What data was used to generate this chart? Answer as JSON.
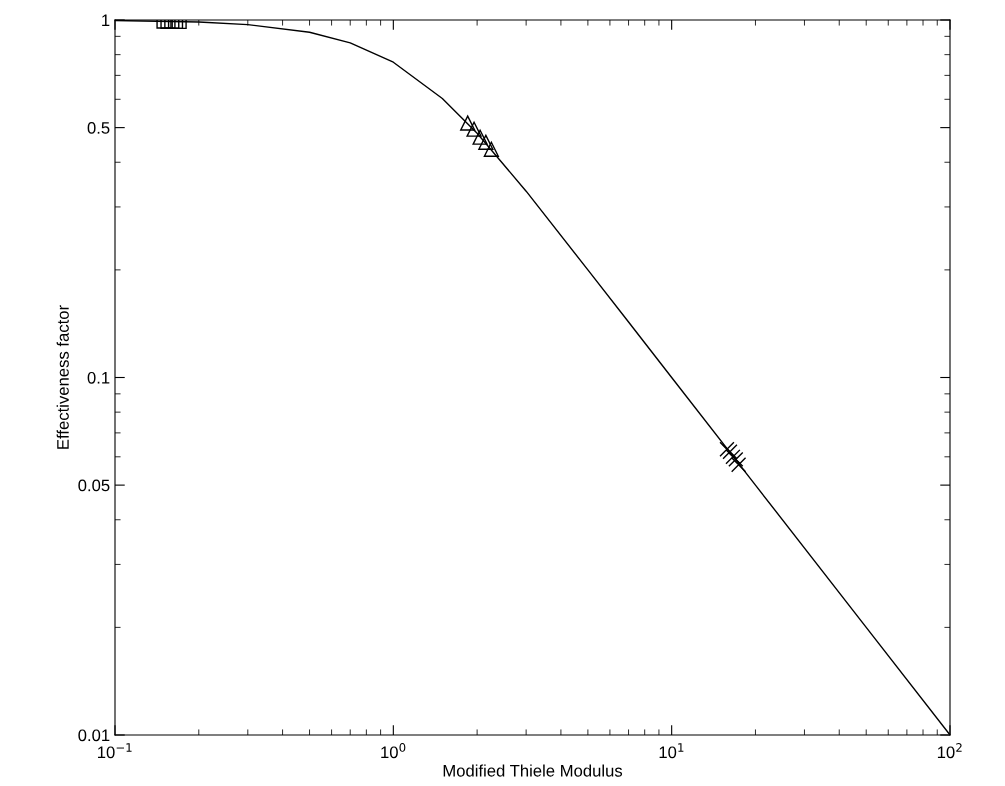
{
  "chart_data": {
    "type": "line",
    "xlabel": "Modified Thiele Modulus",
    "ylabel": "Effectiveness factor",
    "log": "xy",
    "grid": false,
    "xlim": [
      0.1,
      100
    ],
    "ylim": [
      0.01,
      1
    ],
    "xticks": [
      {
        "value": 0.1,
        "label": "10$^{−1}$"
      },
      {
        "value": 1,
        "label": "10$^{0}$"
      },
      {
        "value": 10,
        "label": "10$^{1}$"
      },
      {
        "value": 100,
        "label": "10$^{2}$"
      }
    ],
    "yticks": [
      0.01,
      0.05,
      0.1,
      0.5,
      1
    ],
    "series": [
      {
        "color": "#000000",
        "marker": "none",
        "line_style": "solid",
        "x": [
          0.1,
          0.2,
          0.3,
          0.5,
          0.7,
          1,
          1.5,
          2,
          3,
          5,
          7,
          10,
          20,
          50,
          100
        ],
        "values": [
          0.997,
          0.987,
          0.971,
          0.924,
          0.863,
          0.762,
          0.603,
          0.482,
          0.332,
          0.2,
          0.143,
          0.1,
          0.05,
          0.02,
          0.01
        ]
      },
      {
        "type": "scatter",
        "color": "#000000",
        "marker": "square",
        "x": [
          0.15,
          0.155,
          0.16,
          0.165,
          0.17
        ],
        "values": [
          0.993,
          0.992,
          0.992,
          0.991,
          0.991
        ]
      },
      {
        "type": "scatter",
        "color": "#000000",
        "marker": "triangle",
        "x": [
          1.85,
          1.95,
          2.05,
          2.15,
          2.25
        ],
        "values": [
          0.515,
          0.495,
          0.47,
          0.455,
          0.435
        ]
      },
      {
        "type": "scatter",
        "color": "#000000",
        "marker": "cross",
        "x": [
          15.8,
          16.2,
          16.6,
          17.0,
          17.4
        ],
        "values": [
          0.063,
          0.062,
          0.06,
          0.059,
          0.057
        ]
      }
    ]
  }
}
